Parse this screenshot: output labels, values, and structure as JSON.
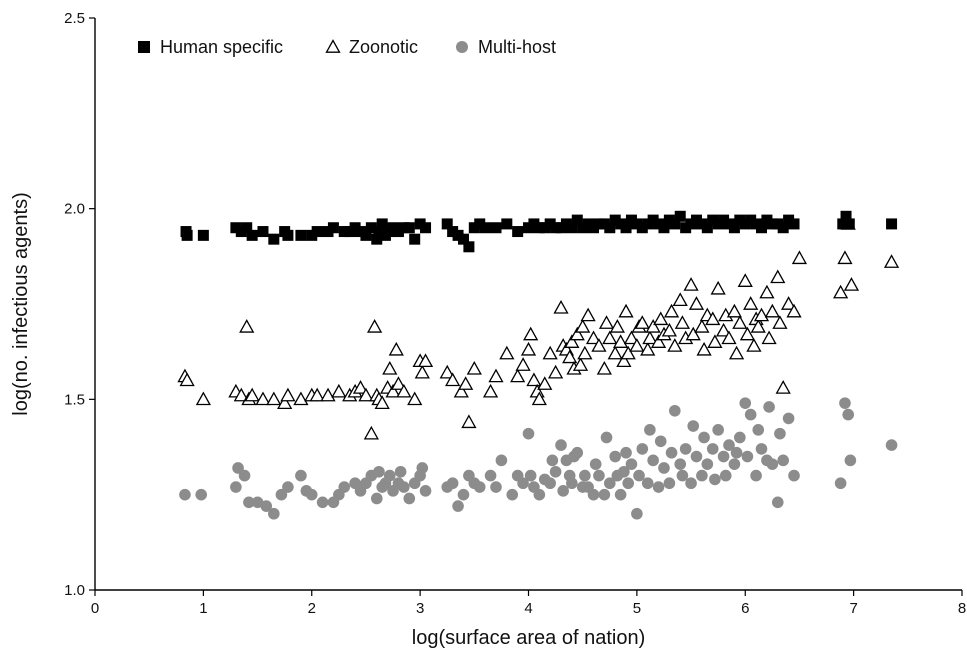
{
  "chart_data": {
    "type": "scatter",
    "xlabel": "log(surface area of nation)",
    "ylabel": "log(no. infectious agents)",
    "xlim": [
      0,
      8
    ],
    "ylim": [
      1.0,
      2.5
    ],
    "x_ticks": [
      0,
      1,
      2,
      3,
      4,
      5,
      6,
      7,
      8
    ],
    "y_ticks": [
      1.0,
      1.5,
      2.0,
      2.5
    ],
    "x_tick_labels": [
      "0",
      "1",
      "2",
      "3",
      "4",
      "5",
      "6",
      "7",
      "8"
    ],
    "y_tick_labels": [
      "1.0",
      "1.5",
      "2.0",
      "2.5"
    ],
    "grid": false,
    "legend_position": "top-left",
    "series": [
      {
        "name": "Human specific",
        "marker": "filled-square",
        "color": "#000000",
        "x": [
          0.84,
          0.85,
          1.0,
          1.3,
          1.35,
          1.4,
          1.45,
          1.55,
          1.65,
          1.75,
          1.78,
          1.9,
          2.0,
          2.05,
          2.15,
          2.2,
          2.3,
          2.35,
          2.4,
          2.45,
          2.5,
          2.55,
          2.6,
          2.62,
          2.65,
          2.68,
          2.72,
          2.75,
          2.8,
          2.85,
          2.9,
          2.95,
          3.0,
          3.05,
          3.25,
          3.3,
          3.35,
          3.4,
          3.45,
          3.5,
          3.55,
          3.6,
          3.7,
          3.8,
          3.9,
          4.0,
          4.05,
          4.1,
          4.15,
          4.2,
          4.25,
          4.3,
          4.35,
          4.4,
          4.45,
          4.5,
          4.55,
          4.6,
          4.65,
          4.7,
          4.75,
          4.8,
          4.85,
          4.9,
          4.95,
          5.0,
          5.05,
          5.1,
          5.15,
          5.2,
          5.25,
          5.3,
          5.35,
          5.4,
          5.45,
          5.5,
          5.55,
          5.6,
          5.65,
          5.7,
          5.75,
          5.8,
          5.85,
          5.9,
          5.95,
          6.0,
          6.05,
          6.1,
          6.15,
          6.2,
          6.25,
          6.3,
          6.35,
          6.4,
          6.45,
          6.9,
          6.93,
          6.96,
          7.35
        ],
        "y": [
          1.94,
          1.93,
          1.93,
          1.95,
          1.94,
          1.95,
          1.93,
          1.94,
          1.92,
          1.94,
          1.93,
          1.93,
          1.93,
          1.94,
          1.94,
          1.95,
          1.94,
          1.94,
          1.95,
          1.94,
          1.93,
          1.95,
          1.92,
          1.94,
          1.96,
          1.93,
          1.94,
          1.95,
          1.94,
          1.95,
          1.95,
          1.92,
          1.96,
          1.95,
          1.96,
          1.94,
          1.93,
          1.92,
          1.9,
          1.95,
          1.96,
          1.95,
          1.95,
          1.96,
          1.94,
          1.95,
          1.96,
          1.95,
          1.95,
          1.96,
          1.95,
          1.95,
          1.96,
          1.95,
          1.97,
          1.95,
          1.96,
          1.95,
          1.96,
          1.96,
          1.95,
          1.97,
          1.96,
          1.95,
          1.97,
          1.96,
          1.95,
          1.96,
          1.97,
          1.96,
          1.95,
          1.97,
          1.96,
          1.98,
          1.95,
          1.96,
          1.97,
          1.96,
          1.95,
          1.97,
          1.96,
          1.97,
          1.96,
          1.95,
          1.97,
          1.96,
          1.97,
          1.96,
          1.95,
          1.97,
          1.96,
          1.96,
          1.95,
          1.97,
          1.96,
          1.96,
          1.98,
          1.96,
          1.96
        ]
      },
      {
        "name": "Zoonotic",
        "marker": "open-triangle",
        "color": "#000000",
        "x": [
          0.83,
          0.85,
          1.0,
          1.3,
          1.35,
          1.4,
          1.42,
          1.45,
          1.55,
          1.65,
          1.75,
          1.78,
          1.9,
          2.0,
          2.05,
          2.15,
          2.25,
          2.35,
          2.4,
          2.45,
          2.5,
          2.55,
          2.58,
          2.6,
          2.62,
          2.65,
          2.7,
          2.72,
          2.75,
          2.78,
          2.8,
          2.85,
          2.95,
          3.0,
          3.02,
          3.05,
          3.25,
          3.3,
          3.38,
          3.42,
          3.45,
          3.5,
          3.65,
          3.7,
          3.8,
          3.9,
          3.95,
          4.0,
          4.02,
          4.05,
          4.08,
          4.1,
          4.15,
          4.2,
          4.25,
          4.3,
          4.32,
          4.35,
          4.38,
          4.4,
          4.42,
          4.45,
          4.48,
          4.5,
          4.52,
          4.55,
          4.6,
          4.65,
          4.7,
          4.72,
          4.75,
          4.8,
          4.82,
          4.85,
          4.88,
          4.9,
          4.92,
          4.95,
          5.0,
          5.02,
          5.05,
          5.1,
          5.12,
          5.15,
          5.2,
          5.22,
          5.25,
          5.3,
          5.32,
          5.35,
          5.4,
          5.42,
          5.45,
          5.5,
          5.52,
          5.55,
          5.6,
          5.62,
          5.65,
          5.7,
          5.72,
          5.75,
          5.8,
          5.82,
          5.85,
          5.9,
          5.92,
          5.95,
          6.0,
          6.02,
          6.05,
          6.08,
          6.1,
          6.12,
          6.15,
          6.2,
          6.22,
          6.25,
          6.3,
          6.32,
          6.35,
          6.4,
          6.45,
          6.5,
          6.88,
          6.92,
          6.95,
          6.98,
          7.35
        ],
        "y": [
          1.56,
          1.55,
          1.5,
          1.52,
          1.51,
          1.69,
          1.5,
          1.51,
          1.5,
          1.5,
          1.49,
          1.51,
          1.5,
          1.51,
          1.51,
          1.51,
          1.52,
          1.51,
          1.52,
          1.53,
          1.51,
          1.41,
          1.69,
          1.51,
          1.5,
          1.49,
          1.53,
          1.58,
          1.52,
          1.63,
          1.54,
          1.52,
          1.5,
          1.6,
          1.57,
          1.6,
          1.57,
          1.55,
          1.52,
          1.54,
          1.44,
          1.58,
          1.52,
          1.56,
          1.62,
          1.56,
          1.59,
          1.63,
          1.67,
          1.55,
          1.52,
          1.5,
          1.54,
          1.62,
          1.57,
          1.74,
          1.64,
          1.63,
          1.61,
          1.65,
          1.58,
          1.67,
          1.59,
          1.69,
          1.62,
          1.72,
          1.66,
          1.64,
          1.58,
          1.7,
          1.66,
          1.62,
          1.69,
          1.65,
          1.6,
          1.73,
          1.62,
          1.66,
          1.64,
          1.69,
          1.7,
          1.63,
          1.66,
          1.69,
          1.65,
          1.71,
          1.67,
          1.68,
          1.73,
          1.64,
          1.76,
          1.7,
          1.66,
          1.8,
          1.67,
          1.75,
          1.69,
          1.63,
          1.72,
          1.71,
          1.65,
          1.79,
          1.68,
          1.72,
          1.66,
          1.73,
          1.62,
          1.7,
          1.81,
          1.67,
          1.75,
          1.64,
          1.71,
          1.69,
          1.72,
          1.78,
          1.66,
          1.73,
          1.82,
          1.7,
          1.53,
          1.75,
          1.73,
          1.87,
          1.78,
          1.87,
          1.96,
          1.8,
          1.86
        ]
      },
      {
        "name": "Multi-host",
        "marker": "filled-circle",
        "color": "#8c8c8c",
        "x": [
          0.83,
          0.98,
          1.3,
          1.32,
          1.38,
          1.42,
          1.5,
          1.58,
          1.65,
          1.72,
          1.78,
          1.9,
          1.95,
          2.0,
          2.1,
          2.2,
          2.25,
          2.3,
          2.4,
          2.45,
          2.5,
          2.55,
          2.6,
          2.62,
          2.65,
          2.68,
          2.72,
          2.75,
          2.8,
          2.82,
          2.85,
          2.9,
          2.95,
          3.0,
          3.02,
          3.05,
          3.25,
          3.3,
          3.35,
          3.4,
          3.45,
          3.5,
          3.55,
          3.65,
          3.7,
          3.75,
          3.85,
          3.9,
          3.95,
          4.0,
          4.02,
          4.05,
          4.1,
          4.15,
          4.2,
          4.22,
          4.25,
          4.3,
          4.32,
          4.35,
          4.38,
          4.4,
          4.42,
          4.45,
          4.5,
          4.52,
          4.55,
          4.6,
          4.62,
          4.65,
          4.7,
          4.72,
          4.75,
          4.8,
          4.82,
          4.85,
          4.88,
          4.9,
          4.92,
          4.95,
          5.0,
          5.02,
          5.05,
          5.1,
          5.12,
          5.15,
          5.2,
          5.22,
          5.25,
          5.3,
          5.32,
          5.35,
          5.4,
          5.42,
          5.45,
          5.5,
          5.52,
          5.55,
          5.6,
          5.62,
          5.65,
          5.7,
          5.72,
          5.75,
          5.8,
          5.82,
          5.85,
          5.9,
          5.92,
          5.95,
          6.0,
          6.02,
          6.05,
          6.1,
          6.12,
          6.15,
          6.2,
          6.22,
          6.25,
          6.3,
          6.32,
          6.35,
          6.4,
          6.45,
          6.88,
          6.92,
          6.95,
          6.97,
          7.35
        ],
        "y": [
          1.25,
          1.25,
          1.27,
          1.32,
          1.3,
          1.23,
          1.23,
          1.22,
          1.2,
          1.25,
          1.27,
          1.3,
          1.26,
          1.25,
          1.23,
          1.23,
          1.25,
          1.27,
          1.28,
          1.26,
          1.28,
          1.3,
          1.24,
          1.31,
          1.27,
          1.28,
          1.3,
          1.26,
          1.28,
          1.31,
          1.27,
          1.24,
          1.28,
          1.3,
          1.32,
          1.26,
          1.27,
          1.28,
          1.22,
          1.25,
          1.3,
          1.28,
          1.27,
          1.3,
          1.27,
          1.34,
          1.25,
          1.3,
          1.28,
          1.41,
          1.3,
          1.27,
          1.25,
          1.29,
          1.28,
          1.34,
          1.31,
          1.38,
          1.26,
          1.34,
          1.3,
          1.28,
          1.35,
          1.36,
          1.27,
          1.3,
          1.27,
          1.25,
          1.33,
          1.3,
          1.25,
          1.4,
          1.28,
          1.35,
          1.3,
          1.25,
          1.31,
          1.36,
          1.28,
          1.33,
          1.2,
          1.3,
          1.37,
          1.28,
          1.42,
          1.34,
          1.27,
          1.39,
          1.32,
          1.28,
          1.36,
          1.47,
          1.33,
          1.3,
          1.37,
          1.28,
          1.43,
          1.35,
          1.3,
          1.4,
          1.33,
          1.37,
          1.29,
          1.42,
          1.35,
          1.3,
          1.38,
          1.33,
          1.36,
          1.4,
          1.49,
          1.35,
          1.46,
          1.3,
          1.42,
          1.37,
          1.34,
          1.48,
          1.33,
          1.23,
          1.41,
          1.34,
          1.45,
          1.3,
          1.28,
          1.49,
          1.46,
          1.34,
          1.38
        ]
      }
    ]
  }
}
